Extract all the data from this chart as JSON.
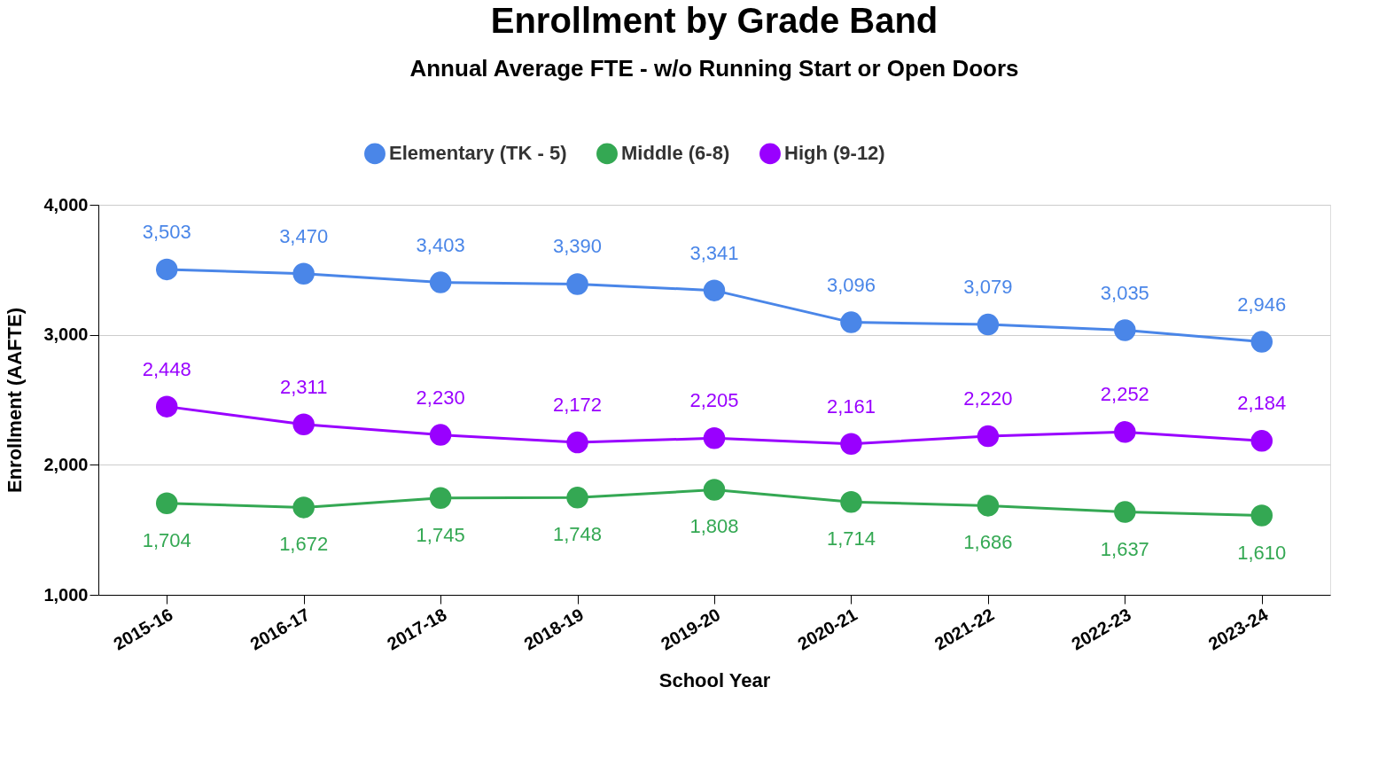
{
  "chart_data": {
    "type": "line",
    "title": "Enrollment by Grade Band",
    "subtitle": "Annual Average FTE - w/o Running Start or Open Doors",
    "xlabel": "School Year",
    "ylabel": "Enrollment (AAFTE)",
    "categories": [
      "2015-16",
      "2016-17",
      "2017-18",
      "2018-19",
      "2019-20",
      "2020-21",
      "2021-22",
      "2022-23",
      "2023-24"
    ],
    "series": [
      {
        "name": "Elementary (TK - 5)",
        "color": "#4a86e8",
        "values": [
          3503,
          3470,
          3403,
          3390,
          3341,
          3096,
          3079,
          3035,
          2946
        ],
        "value_labels": [
          "3,503",
          "3,470",
          "3,403",
          "3,390",
          "3,341",
          "3,096",
          "3,079",
          "3,035",
          "2,946"
        ]
      },
      {
        "name": "Middle (6-8)",
        "color": "#34a853",
        "values": [
          1704,
          1672,
          1745,
          1748,
          1808,
          1714,
          1686,
          1637,
          1610
        ],
        "value_labels": [
          "1,704",
          "1,672",
          "1,745",
          "1,748",
          "1,808",
          "1,714",
          "1,686",
          "1,637",
          "1,610"
        ]
      },
      {
        "name": "High (9-12)",
        "color": "#9900ff",
        "values": [
          2448,
          2311,
          2230,
          2172,
          2205,
          2161,
          2220,
          2252,
          2184
        ],
        "value_labels": [
          "2,448",
          "2,311",
          "2,230",
          "2,172",
          "2,205",
          "2,161",
          "2,220",
          "2,252",
          "2,184"
        ]
      }
    ],
    "ylim": [
      1000,
      4000
    ],
    "yticks": [
      {
        "value": 1000,
        "label": "1,000"
      },
      {
        "value": 2000,
        "label": "2,000"
      },
      {
        "value": 3000,
        "label": "3,000"
      },
      {
        "value": 4000,
        "label": "4,000"
      }
    ],
    "grid": "y",
    "legend": "top",
    "marker": "circle",
    "line_style": "solid"
  }
}
